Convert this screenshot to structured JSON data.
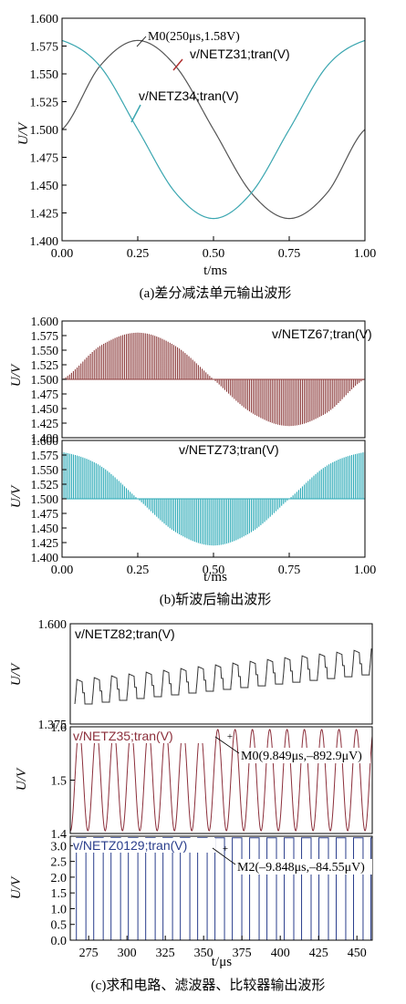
{
  "chart_data": [
    {
      "type": "line",
      "caption": "(a)差分减法单元输出波形",
      "xlabel": "t/ms",
      "ylabel": "U/V",
      "xlim": [
        0,
        1.0
      ],
      "ylim": [
        1.4,
        1.6
      ],
      "xticks": [
        "0.00",
        "0.25",
        "0.50",
        "0.75",
        "1.00"
      ],
      "yticks": [
        "1.600",
        "1.575",
        "1.550",
        "1.525",
        "1.500",
        "1.475",
        "1.450",
        "1.425",
        "1.400"
      ],
      "series": [
        {
          "name": "v/NETZ31;tran(V)",
          "color": "#555555",
          "x": [
            0,
            0.125,
            0.25,
            0.375,
            0.5,
            0.625,
            0.75,
            0.875,
            1.0
          ],
          "values": [
            1.5,
            1.557,
            1.58,
            1.557,
            1.5,
            1.443,
            1.42,
            1.443,
            1.5
          ]
        },
        {
          "name": "v/NETZ34;tran(V)",
          "color": "#3aa6b0",
          "x": [
            0,
            0.125,
            0.25,
            0.375,
            0.5,
            0.625,
            0.75,
            0.875,
            1.0
          ],
          "values": [
            1.58,
            1.557,
            1.5,
            1.443,
            1.42,
            1.443,
            1.5,
            1.557,
            1.58
          ]
        }
      ],
      "annotations": [
        {
          "text": "M0(250μs,1.58V)",
          "x": 0.25,
          "y": 1.58
        }
      ]
    },
    {
      "type": "area",
      "caption": "(b)斩波后输出波形",
      "xlabel": "t/ms",
      "xlim": [
        0,
        1.0
      ],
      "xticks": [
        "0.00",
        "0.25",
        "0.50",
        "0.75",
        "1.00"
      ],
      "panels": [
        {
          "ylabel": "U/V",
          "ylim": [
            1.4,
            1.6
          ],
          "yticks": [
            "1.600",
            "1.575",
            "1.550",
            "1.525",
            "1.500",
            "1.475",
            "1.450",
            "1.425",
            "1.400"
          ],
          "name": "v/NETZ67;tran(V)",
          "color": "#8b3a3a",
          "envelope_x": [
            0,
            0.125,
            0.25,
            0.375,
            0.5,
            0.625,
            0.75,
            0.875,
            1.0
          ],
          "envelope_y": [
            1.5,
            1.557,
            1.58,
            1.557,
            1.5,
            1.443,
            1.42,
            1.443,
            1.5
          ],
          "baseline": 1.5
        },
        {
          "ylabel": "U/V",
          "ylim": [
            1.4,
            1.6
          ],
          "yticks": [
            "1.600",
            "1.575",
            "1.550",
            "1.525",
            "1.500",
            "1.475",
            "1.450",
            "1.425",
            "1.400"
          ],
          "name": "v/NETZ73;tran(V)",
          "color": "#2aa9b6",
          "envelope_x": [
            0,
            0.125,
            0.25,
            0.375,
            0.5,
            0.625,
            0.75,
            0.875,
            1.0
          ],
          "envelope_y": [
            1.58,
            1.557,
            1.5,
            1.443,
            1.42,
            1.443,
            1.5,
            1.557,
            1.58
          ],
          "baseline": 1.5
        }
      ]
    },
    {
      "type": "line",
      "caption": "(c)求和电路、滤波器、比较器输出波形",
      "xlabel": "t/μs",
      "xlim": [
        263,
        460
      ],
      "xticks": [
        "275",
        "300",
        "325",
        "350",
        "375",
        "400",
        "425",
        "450"
      ],
      "panels": [
        {
          "ylabel": "U/V",
          "ylim": [
            1.375,
            1.6
          ],
          "yticks": [
            "1.600",
            "1.375"
          ],
          "name": "v/NETZ82;tran(V)",
          "color": "#333333"
        },
        {
          "ylabel": "U/V",
          "ylim": [
            1.4,
            1.6
          ],
          "yticks": [
            "1.6",
            "1.5",
            "1.4"
          ],
          "name": "v/NETZ35;tran(V)",
          "color": "#8b2e3a",
          "annotation": {
            "text": "M0(9.849μs,–892.9μV)"
          }
        },
        {
          "ylabel": "U/V",
          "ylim": [
            0.0,
            3.3
          ],
          "yticks": [
            "3.0",
            "2.5",
            "2.0",
            "1.5",
            "1.0",
            "0.5",
            "0.0"
          ],
          "name": "v/NETZ0129;tran(V)",
          "color": "#2a3e8c",
          "annotation": {
            "text": "M2(–9.848μs,–84.55μV)"
          }
        }
      ]
    }
  ]
}
